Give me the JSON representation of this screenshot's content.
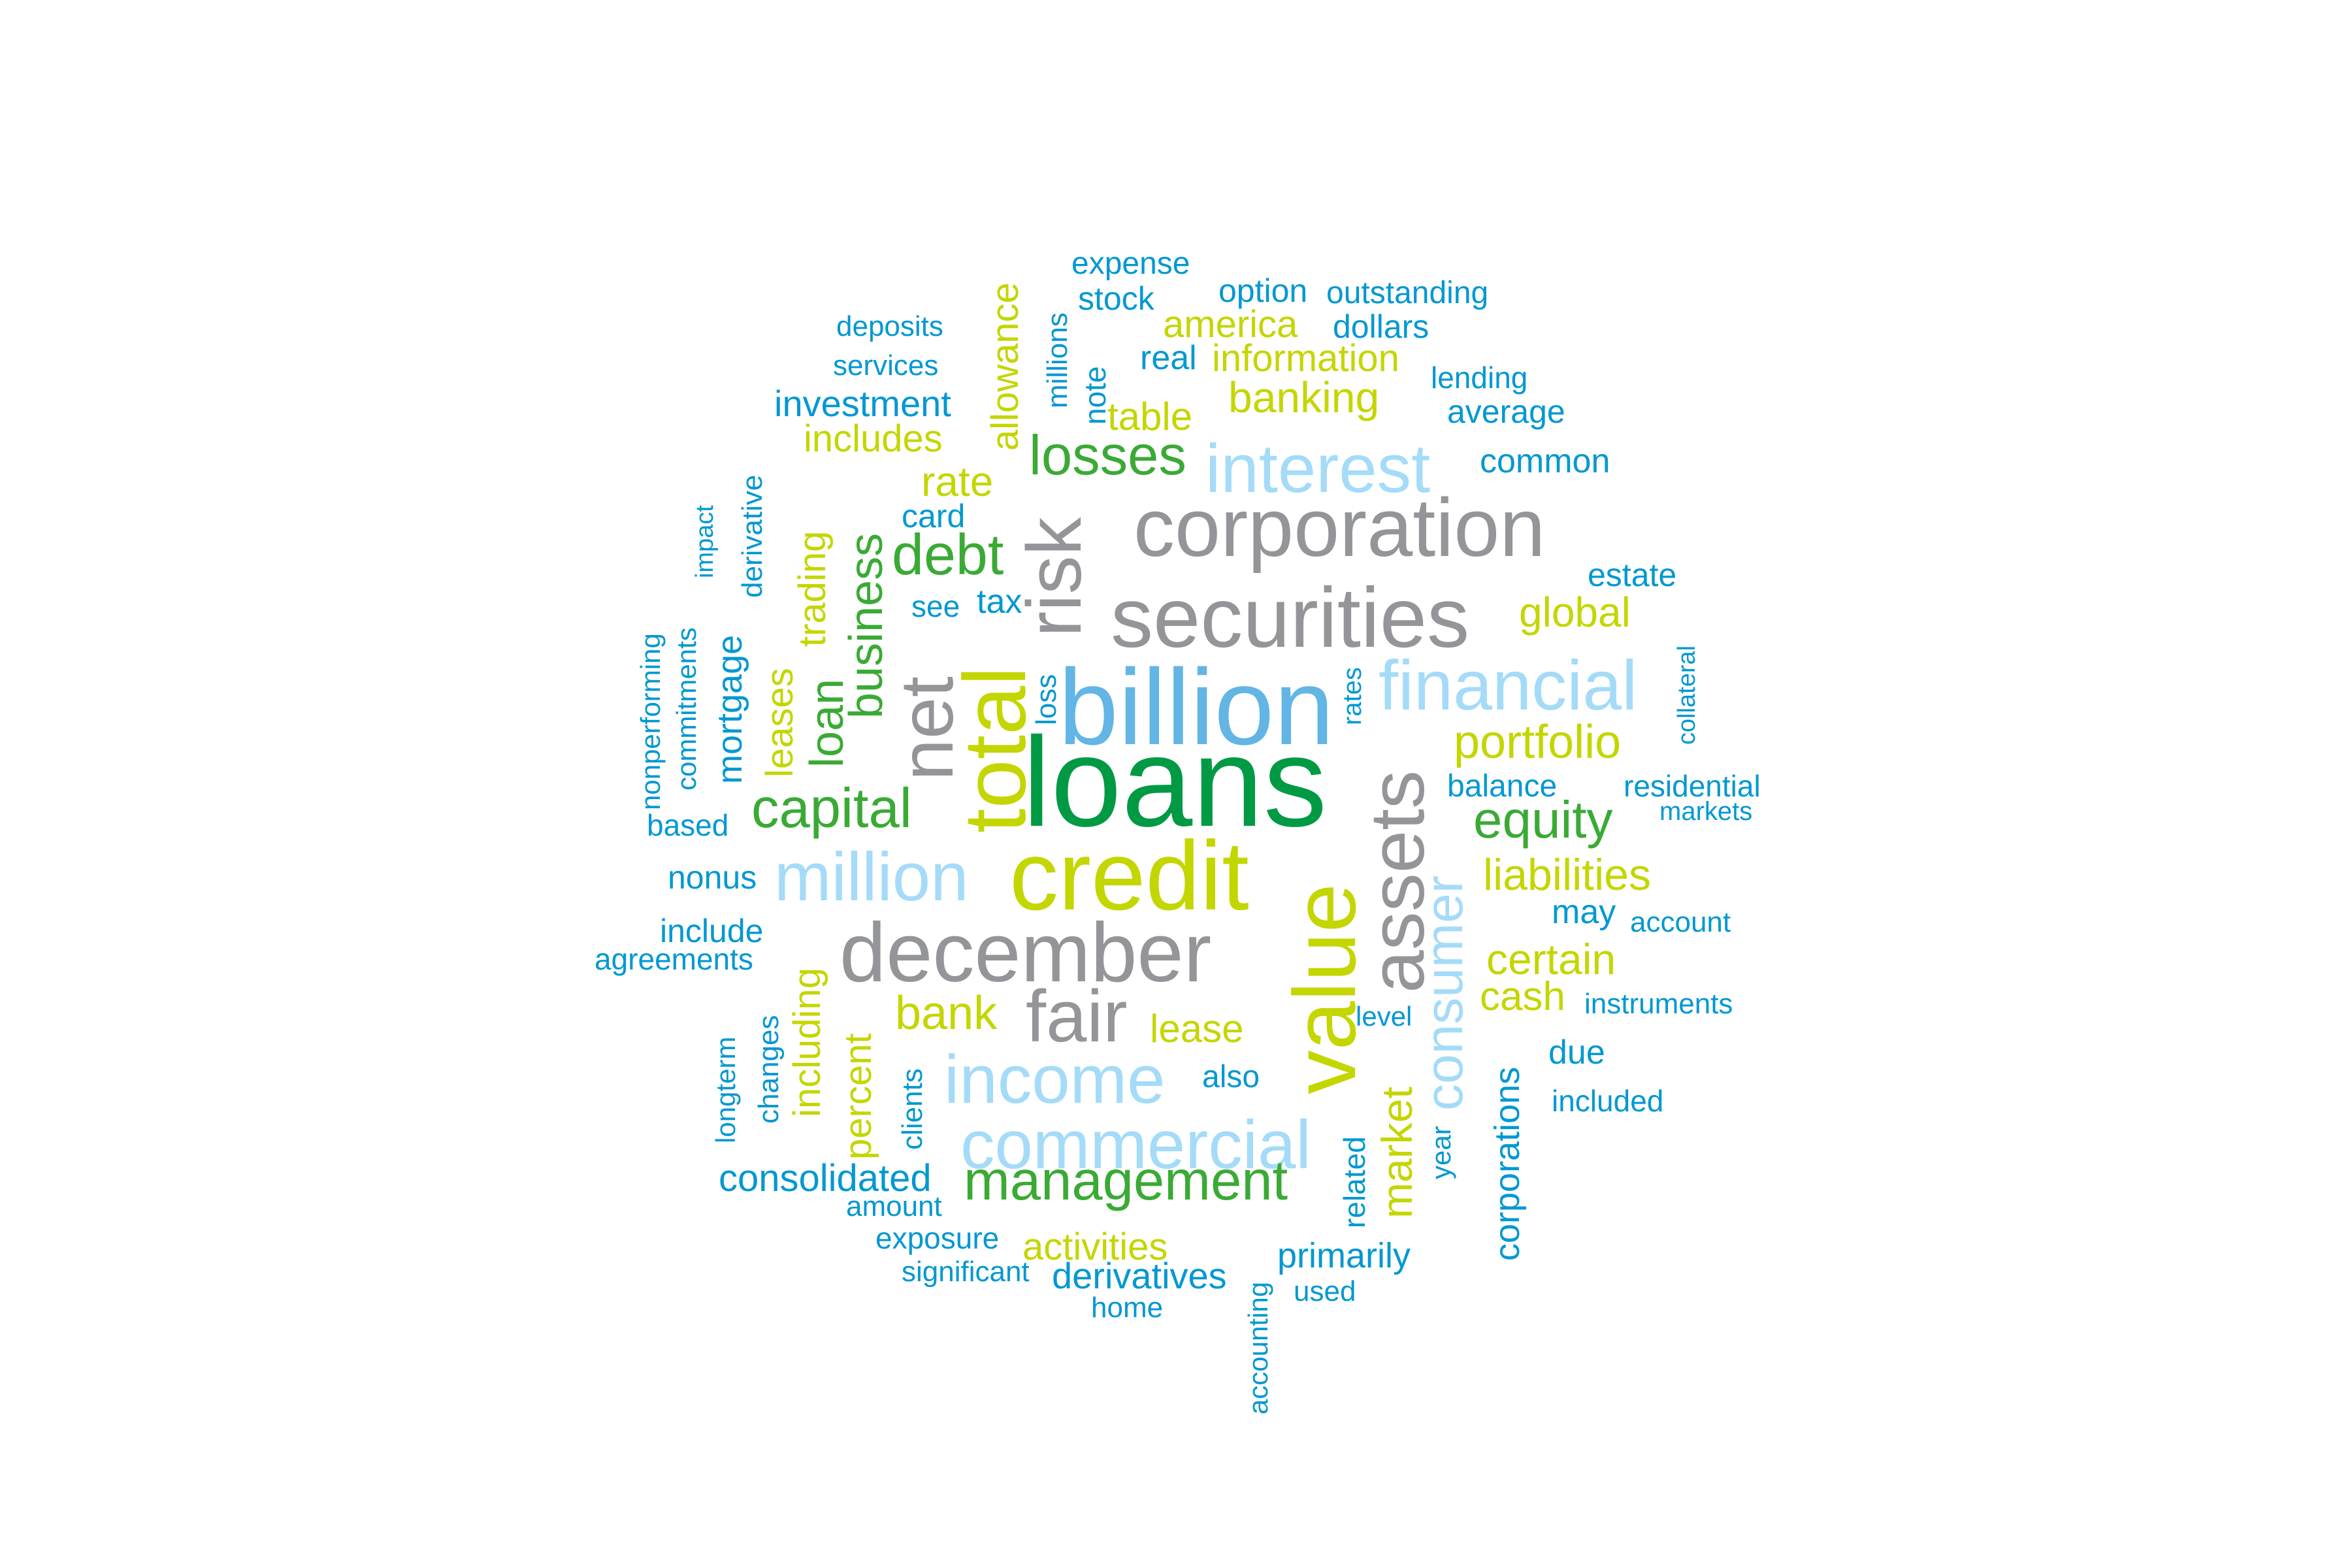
{
  "palette": {
    "dark_green": "#009a44",
    "green": "#3aaa35",
    "lime": "#c4d600",
    "blue": "#0098d2",
    "sky": "#62b5e5",
    "light_blue": "#a4dbf8",
    "gray": "#939598"
  },
  "words": [
    {
      "text": "loans",
      "color": "dark_green"
    },
    {
      "text": "billion",
      "color": "sky"
    },
    {
      "text": "credit",
      "color": "lime"
    },
    {
      "text": "total",
      "color": "lime"
    },
    {
      "text": "value",
      "color": "lime"
    },
    {
      "text": "december",
      "color": "gray"
    },
    {
      "text": "securities",
      "color": "gray"
    },
    {
      "text": "corporation",
      "color": "gray"
    },
    {
      "text": "assets",
      "color": "gray"
    },
    {
      "text": "net",
      "color": "gray"
    },
    {
      "text": "fair",
      "color": "gray"
    },
    {
      "text": "risk",
      "color": "gray"
    },
    {
      "text": "financial",
      "color": "light_blue"
    },
    {
      "text": "million",
      "color": "light_blue"
    },
    {
      "text": "income",
      "color": "light_blue"
    },
    {
      "text": "commercial",
      "color": "light_blue"
    },
    {
      "text": "interest",
      "color": "light_blue"
    },
    {
      "text": "consumer",
      "color": "light_blue"
    },
    {
      "text": "management",
      "color": "green"
    },
    {
      "text": "losses",
      "color": "green"
    },
    {
      "text": "debt",
      "color": "green"
    },
    {
      "text": "capital",
      "color": "green"
    },
    {
      "text": "equity",
      "color": "green"
    },
    {
      "text": "business",
      "color": "green"
    },
    {
      "text": "loan",
      "color": "green"
    },
    {
      "text": "portfolio",
      "color": "lime"
    },
    {
      "text": "liabilities",
      "color": "lime"
    },
    {
      "text": "certain",
      "color": "lime"
    },
    {
      "text": "banking",
      "color": "lime"
    },
    {
      "text": "bank",
      "color": "lime"
    },
    {
      "text": "market",
      "color": "lime"
    },
    {
      "text": "global",
      "color": "lime"
    },
    {
      "text": "cash",
      "color": "lime"
    },
    {
      "text": "rate",
      "color": "lime"
    },
    {
      "text": "activities",
      "color": "lime"
    },
    {
      "text": "lease",
      "color": "lime"
    },
    {
      "text": "information",
      "color": "lime"
    },
    {
      "text": "america",
      "color": "lime"
    },
    {
      "text": "table",
      "color": "lime"
    },
    {
      "text": "includes",
      "color": "lime"
    },
    {
      "text": "allowance",
      "color": "lime"
    },
    {
      "text": "trading",
      "color": "lime"
    },
    {
      "text": "leases",
      "color": "lime"
    },
    {
      "text": "including",
      "color": "lime"
    },
    {
      "text": "percent",
      "color": "lime"
    },
    {
      "text": "consolidated",
      "color": "blue"
    },
    {
      "text": "investment",
      "color": "blue"
    },
    {
      "text": "derivatives",
      "color": "blue"
    },
    {
      "text": "primarily",
      "color": "blue"
    },
    {
      "text": "corporations",
      "color": "blue"
    },
    {
      "text": "mortgage",
      "color": "blue"
    },
    {
      "text": "common",
      "color": "blue"
    },
    {
      "text": "average",
      "color": "blue"
    },
    {
      "text": "real",
      "color": "blue"
    },
    {
      "text": "dollars",
      "color": "blue"
    },
    {
      "text": "option",
      "color": "blue"
    },
    {
      "text": "stock",
      "color": "blue"
    },
    {
      "text": "expense",
      "color": "blue"
    },
    {
      "text": "outstanding",
      "color": "blue"
    },
    {
      "text": "lending",
      "color": "blue"
    },
    {
      "text": "deposits",
      "color": "blue"
    },
    {
      "text": "services",
      "color": "blue"
    },
    {
      "text": "card",
      "color": "blue"
    },
    {
      "text": "tax",
      "color": "blue"
    },
    {
      "text": "see",
      "color": "blue"
    },
    {
      "text": "estate",
      "color": "blue"
    },
    {
      "text": "balance",
      "color": "blue"
    },
    {
      "text": "residential",
      "color": "blue"
    },
    {
      "text": "markets",
      "color": "blue"
    },
    {
      "text": "may",
      "color": "blue"
    },
    {
      "text": "account",
      "color": "blue"
    },
    {
      "text": "instruments",
      "color": "blue"
    },
    {
      "text": "due",
      "color": "blue"
    },
    {
      "text": "included",
      "color": "blue"
    },
    {
      "text": "also",
      "color": "blue"
    },
    {
      "text": "level",
      "color": "blue"
    },
    {
      "text": "year",
      "color": "blue"
    },
    {
      "text": "related",
      "color": "blue"
    },
    {
      "text": "used",
      "color": "blue"
    },
    {
      "text": "accounting",
      "color": "blue"
    },
    {
      "text": "home",
      "color": "blue"
    },
    {
      "text": "significant",
      "color": "blue"
    },
    {
      "text": "exposure",
      "color": "blue"
    },
    {
      "text": "amount",
      "color": "blue"
    },
    {
      "text": "clients",
      "color": "blue"
    },
    {
      "text": "changes",
      "color": "blue"
    },
    {
      "text": "longterm",
      "color": "blue"
    },
    {
      "text": "agreements",
      "color": "blue"
    },
    {
      "text": "include",
      "color": "blue"
    },
    {
      "text": "nonus",
      "color": "blue"
    },
    {
      "text": "based",
      "color": "blue"
    },
    {
      "text": "nonperforming",
      "color": "blue"
    },
    {
      "text": "commitments",
      "color": "blue"
    },
    {
      "text": "impact",
      "color": "blue"
    },
    {
      "text": "derivative",
      "color": "blue"
    },
    {
      "text": "loss",
      "color": "blue"
    },
    {
      "text": "millions",
      "color": "blue"
    },
    {
      "text": "note",
      "color": "blue"
    },
    {
      "text": "rates",
      "color": "blue"
    },
    {
      "text": "collateral",
      "color": "blue"
    }
  ]
}
